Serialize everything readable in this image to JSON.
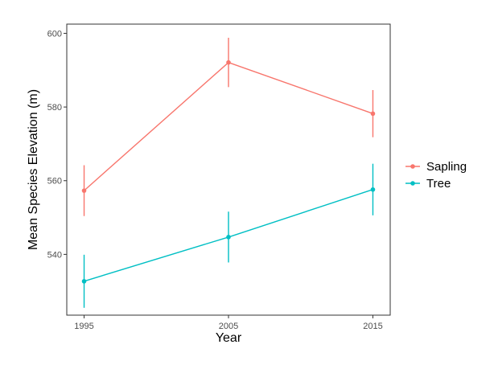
{
  "chart_data": {
    "type": "line",
    "title": "",
    "xlabel": "Year",
    "ylabel": "Mean Species Elevation (m)",
    "x": [
      1995,
      2005,
      2015
    ],
    "x_ticks": [
      "1995",
      "2005",
      "2015"
    ],
    "y_ticks": [
      540,
      560,
      580,
      600
    ],
    "xlim": [
      1993.8,
      2016.2
    ],
    "ylim": [
      523.5,
      602.5
    ],
    "grid": false,
    "legend_position": "right",
    "series": [
      {
        "name": "Sapling",
        "color": "#F8766D",
        "values": [
          557.3,
          592.1,
          578.2
        ],
        "error": [
          6.9,
          6.7,
          6.4
        ]
      },
      {
        "name": "Tree",
        "color": "#00BFC4",
        "values": [
          532.7,
          544.7,
          557.6
        ],
        "error": [
          7.2,
          6.9,
          7.0
        ]
      }
    ]
  }
}
